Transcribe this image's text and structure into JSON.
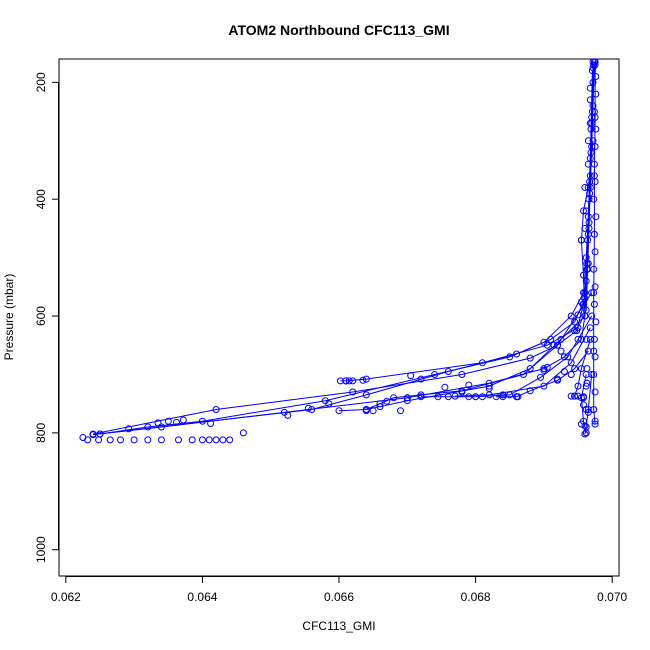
{
  "chart_data": {
    "type": "line",
    "title": "ATOM2 Northbound CFC113_GMI",
    "xlabel": "CFC113_GMI",
    "ylabel": "Pressure (mbar)",
    "xlim": [
      0.0619,
      0.0701
    ],
    "ylim": [
      1045,
      160
    ],
    "y_reversed": true,
    "grid": false,
    "x_ticks": [
      {
        "value": 0.062,
        "label": "0.062"
      },
      {
        "value": 0.064,
        "label": "0.064"
      },
      {
        "value": 0.066,
        "label": "0.066"
      },
      {
        "value": 0.068,
        "label": "0.068"
      },
      {
        "value": 0.07,
        "label": "0.070"
      }
    ],
    "y_ticks": [
      {
        "value": 200,
        "label": "200"
      },
      {
        "value": 400,
        "label": "400"
      },
      {
        "value": 600,
        "label": "600"
      },
      {
        "value": 800,
        "label": "800"
      },
      {
        "value": 1000,
        "label": "1000"
      }
    ],
    "series_color": "#0000ff",
    "series": [
      {
        "points": [
          [
            0.06972,
            165
          ],
          [
            0.06972,
            200
          ],
          [
            0.0697,
            260
          ],
          [
            0.06968,
            330
          ],
          [
            0.06966,
            400
          ],
          [
            0.06964,
            470
          ],
          [
            0.06962,
            540
          ],
          [
            0.0696,
            600
          ],
          [
            0.06955,
            640
          ],
          [
            0.0693,
            670
          ],
          [
            0.069,
            690
          ],
          [
            0.0682,
            715
          ],
          [
            0.067,
            740
          ],
          [
            0.0652,
            765
          ],
          [
            0.0634,
            790
          ],
          [
            0.0624,
            803
          ]
        ]
      },
      {
        "points": [
          [
            0.06973,
            170
          ],
          [
            0.06971,
            250
          ],
          [
            0.06969,
            320
          ],
          [
            0.06967,
            390
          ],
          [
            0.06965,
            460
          ],
          [
            0.06963,
            520
          ],
          [
            0.06958,
            580
          ],
          [
            0.06948,
            625
          ],
          [
            0.0692,
            650
          ],
          [
            0.0688,
            672
          ],
          [
            0.0678,
            700
          ],
          [
            0.0662,
            730
          ],
          [
            0.0642,
            760
          ],
          [
            0.0624,
            802
          ]
        ]
      },
      {
        "points": [
          [
            0.06974,
            165
          ],
          [
            0.06972,
            240
          ],
          [
            0.0697,
            310
          ],
          [
            0.06968,
            380
          ],
          [
            0.06966,
            450
          ],
          [
            0.06964,
            520
          ],
          [
            0.06962,
            590
          ],
          [
            0.0695,
            620
          ],
          [
            0.06905,
            650
          ],
          [
            0.0681,
            680
          ],
          [
            0.0664,
            708
          ],
          [
            0.0661,
            711
          ],
          [
            0.06602,
            711
          ]
        ]
      },
      {
        "points": [
          [
            0.06972,
            175
          ],
          [
            0.0697,
            270
          ],
          [
            0.06968,
            360
          ],
          [
            0.06966,
            440
          ],
          [
            0.06963,
            510
          ],
          [
            0.0696,
            570
          ],
          [
            0.06945,
            610
          ],
          [
            0.0691,
            640
          ],
          [
            0.0685,
            670
          ],
          [
            0.0674,
            700
          ],
          [
            0.0658,
            745
          ],
          [
            0.064,
            780
          ],
          [
            0.0632,
            790
          ],
          [
            0.0625,
            802
          ]
        ]
      },
      {
        "points": [
          [
            0.06971,
            180
          ],
          [
            0.06969,
            280
          ],
          [
            0.06967,
            370
          ],
          [
            0.06965,
            430
          ],
          [
            0.06962,
            500
          ],
          [
            0.06958,
            560
          ],
          [
            0.0694,
            600
          ],
          [
            0.069,
            645
          ],
          [
            0.0686,
            665
          ],
          [
            0.0676,
            695
          ],
          [
            0.0664,
            735
          ],
          [
            0.0656,
            760
          ],
          [
            0.0624,
            803
          ]
        ]
      },
      {
        "points": [
          [
            0.06972,
            300
          ],
          [
            0.06965,
            380
          ],
          [
            0.06958,
            420
          ],
          [
            0.06955,
            470
          ],
          [
            0.06958,
            530
          ],
          [
            0.0696,
            600
          ],
          [
            0.06925,
            640
          ],
          [
            0.0688,
            690
          ],
          [
            0.0682,
            720
          ],
          [
            0.067,
            745
          ],
          [
            0.0664,
            760
          ],
          [
            0.066,
            762
          ]
        ]
      },
      {
        "points": [
          [
            0.0697,
            560
          ],
          [
            0.0692,
            650
          ],
          [
            0.0687,
            700
          ],
          [
            0.0678,
            728
          ],
          [
            0.0672,
            735
          ],
          [
            0.0668,
            740
          ],
          [
            0.0666,
            750
          ],
          [
            0.0664,
            760
          ]
        ]
      },
      {
        "points": [
          [
            0.0697,
            600
          ],
          [
            0.06935,
            670
          ],
          [
            0.06895,
            705
          ],
          [
            0.0685,
            735
          ],
          [
            0.068,
            738
          ],
          [
            0.0676,
            738
          ],
          [
            0.0672,
            738
          ]
        ]
      },
      {
        "points": [
          [
            0.06968,
            640
          ],
          [
            0.06955,
            690
          ],
          [
            0.0695,
            720
          ],
          [
            0.06945,
            737
          ],
          [
            0.0694,
            737
          ]
        ]
      },
      {
        "points": [
          [
            0.06965,
            660
          ],
          [
            0.06945,
            690
          ],
          [
            0.0692,
            710
          ],
          [
            0.0688,
            728
          ],
          [
            0.0686,
            738
          ],
          [
            0.0683,
            738
          ]
        ]
      },
      {
        "points": [
          [
            0.06962,
            700
          ],
          [
            0.06955,
            740
          ],
          [
            0.06958,
            780
          ],
          [
            0.06962,
            800
          ]
        ]
      },
      {
        "points": [
          [
            0.0697,
            700
          ],
          [
            0.06965,
            760
          ],
          [
            0.06962,
            790
          ],
          [
            0.0696,
            802
          ]
        ]
      },
      {
        "points": [
          [
            0.06968,
            620
          ],
          [
            0.0694,
            680
          ],
          [
            0.069,
            720
          ],
          [
            0.0682,
            735
          ],
          [
            0.0677,
            737
          ]
        ]
      },
      {
        "points": [
          [
            0.06975,
            165
          ],
          [
            0.06975,
            260
          ],
          [
            0.06974,
            360
          ],
          [
            0.06974,
            460
          ],
          [
            0.06973,
            560
          ],
          [
            0.06973,
            660
          ],
          [
            0.06973,
            760
          ],
          [
            0.06975,
            785
          ]
        ]
      }
    ],
    "markers": [
      [
        0.06225,
        808
      ],
      [
        0.06232,
        812
      ],
      [
        0.06248,
        812
      ],
      [
        0.06265,
        812
      ],
      [
        0.0628,
        812
      ],
      [
        0.063,
        812
      ],
      [
        0.0632,
        812
      ],
      [
        0.0634,
        812
      ],
      [
        0.06365,
        812
      ],
      [
        0.06385,
        812
      ],
      [
        0.064,
        812
      ],
      [
        0.0641,
        812
      ],
      [
        0.0642,
        812
      ],
      [
        0.0643,
        812
      ],
      [
        0.0644,
        812
      ],
      [
        0.0646,
        800
      ],
      [
        0.0625,
        802
      ],
      [
        0.06292,
        793
      ],
      [
        0.06335,
        783
      ],
      [
        0.0635,
        780
      ],
      [
        0.06362,
        782
      ],
      [
        0.06372,
        778
      ],
      [
        0.06412,
        784
      ],
      [
        0.06525,
        770
      ],
      [
        0.06555,
        758
      ],
      [
        0.06585,
        750
      ],
      [
        0.0661,
        711
      ],
      [
        0.06615,
        711
      ],
      [
        0.0662,
        711
      ],
      [
        0.06635,
        710
      ],
      [
        0.06705,
        702
      ],
      [
        0.0672,
        708
      ],
      [
        0.06755,
        722
      ],
      [
        0.0678,
        730
      ],
      [
        0.0679,
        718
      ],
      [
        0.0682,
        724
      ],
      [
        0.0684,
        735
      ],
      [
        0.0686,
        738
      ],
      [
        0.069,
        693
      ],
      [
        0.06915,
        650
      ],
      [
        0.06925,
        660
      ],
      [
        0.0695,
        640
      ],
      [
        0.0695,
        598
      ],
      [
        0.06955,
        576
      ],
      [
        0.06957,
        580
      ],
      [
        0.06945,
        625
      ],
      [
        0.0693,
        695
      ],
      [
        0.0692,
        708
      ],
      [
        0.06905,
        688
      ],
      [
        0.0664,
        762
      ],
      [
        0.0665,
        762
      ],
      [
        0.0666,
        755
      ],
      [
        0.0667,
        746
      ],
      [
        0.0669,
        762
      ],
      [
        0.067,
        740
      ],
      [
        0.06745,
        738
      ],
      [
        0.0679,
        738
      ],
      [
        0.068,
        738
      ],
      [
        0.0681,
        738
      ],
      [
        0.0684,
        738
      ],
      [
        0.06862,
        738
      ],
      [
        0.06945,
        737
      ],
      [
        0.0695,
        737
      ],
      [
        0.06958,
        738
      ],
      [
        0.06958,
        752
      ],
      [
        0.06962,
        760
      ],
      [
        0.0696,
        788
      ],
      [
        0.06962,
        800
      ],
      [
        0.06955,
        785
      ],
      [
        0.06965,
        765
      ],
      [
        0.06963,
        715
      ],
      [
        0.0696,
        560
      ],
      [
        0.06965,
        510
      ],
      [
        0.06955,
        470
      ],
      [
        0.0696,
        450
      ],
      [
        0.06962,
        420
      ],
      [
        0.0696,
        380
      ],
      [
        0.06965,
        340
      ],
      [
        0.06965,
        300
      ],
      [
        0.06968,
        270
      ],
      [
        0.06968,
        230
      ],
      [
        0.06968,
        210
      ],
      [
        0.06962,
        640
      ],
      [
        0.06963,
        690
      ],
      [
        0.06962,
        720
      ],
      [
        0.06958,
        740
      ],
      [
        0.0694,
        700
      ],
      [
        0.06975,
        170
      ],
      [
        0.06976,
        190
      ],
      [
        0.06976,
        220
      ],
      [
        0.06974,
        250
      ],
      [
        0.06976,
        280
      ],
      [
        0.06975,
        310
      ],
      [
        0.06974,
        340
      ],
      [
        0.06975,
        370
      ],
      [
        0.06973,
        400
      ],
      [
        0.06976,
        430
      ],
      [
        0.06974,
        460
      ],
      [
        0.06975,
        490
      ],
      [
        0.06973,
        520
      ],
      [
        0.06975,
        550
      ],
      [
        0.06974,
        580
      ],
      [
        0.06976,
        610
      ],
      [
        0.06974,
        640
      ],
      [
        0.06975,
        670
      ],
      [
        0.06973,
        700
      ],
      [
        0.06975,
        730
      ],
      [
        0.06973,
        760
      ],
      [
        0.06975,
        780
      ]
    ]
  }
}
